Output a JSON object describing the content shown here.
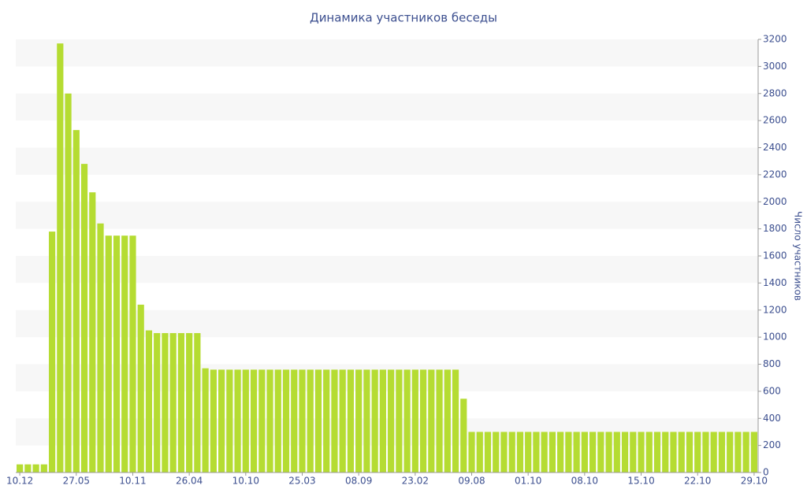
{
  "chart_data": {
    "type": "bar",
    "title": "Динамика участников беседы",
    "y_label": "Число участников",
    "categories": [
      "10.12",
      null,
      null,
      null,
      null,
      null,
      null,
      "27.05",
      null,
      null,
      null,
      null,
      null,
      null,
      "10.11",
      null,
      null,
      null,
      null,
      null,
      null,
      "26.04",
      null,
      null,
      null,
      null,
      null,
      null,
      "10.10",
      null,
      null,
      null,
      null,
      null,
      null,
      "25.03",
      null,
      null,
      null,
      null,
      null,
      null,
      "08.09",
      null,
      null,
      null,
      null,
      null,
      null,
      "23.02",
      null,
      null,
      null,
      null,
      null,
      null,
      "09.08",
      null,
      null,
      null,
      null,
      null,
      null,
      "01.10",
      null,
      null,
      null,
      null,
      null,
      null,
      "08.10",
      null,
      null,
      null,
      null,
      null,
      null,
      "15.10",
      null,
      null,
      null,
      null,
      null,
      null,
      "22.10",
      null,
      null,
      null,
      null,
      null,
      null,
      "29.10"
    ],
    "values": [
      60,
      60,
      60,
      60,
      1780,
      3170,
      2800,
      2530,
      2280,
      2070,
      1840,
      1750,
      1750,
      1750,
      1750,
      1240,
      1050,
      1030,
      1030,
      1030,
      1030,
      1030,
      1030,
      770,
      760,
      760,
      760,
      760,
      760,
      760,
      760,
      760,
      760,
      760,
      760,
      760,
      760,
      760,
      760,
      760,
      760,
      760,
      760,
      760,
      760,
      760,
      760,
      760,
      760,
      760,
      760,
      760,
      760,
      760,
      760,
      545,
      300,
      300,
      300,
      300,
      300,
      300,
      300,
      300,
      300,
      300,
      300,
      300,
      300,
      300,
      300,
      300,
      300,
      300,
      300,
      300,
      300,
      300,
      300,
      300,
      300,
      300,
      300,
      300,
      300,
      300,
      300,
      300,
      300,
      300,
      300,
      300
    ],
    "color": "#b5dc32",
    "band_color": "#f7f7f7",
    "ylim": [
      0,
      3200
    ],
    "yticks": [
      0,
      200,
      400,
      600,
      800,
      1000,
      1200,
      1400,
      1600,
      1800,
      2000,
      2200,
      2400,
      2600,
      2800,
      3000,
      3200
    ],
    "y_axis_side": "right"
  }
}
